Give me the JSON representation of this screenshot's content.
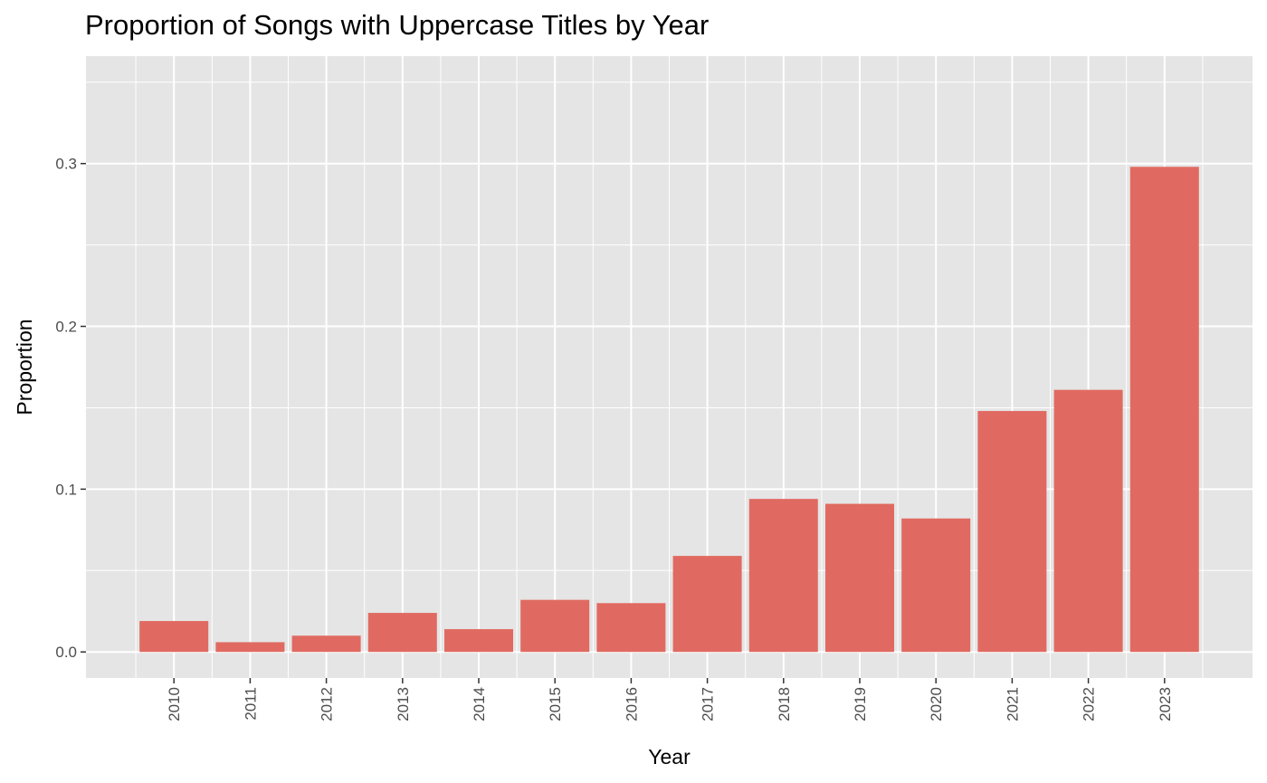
{
  "chart_data": {
    "type": "bar",
    "title": "Proportion of Songs with Uppercase Titles by Year",
    "xlabel": "Year",
    "ylabel": "Proportion",
    "categories": [
      "2010",
      "2011",
      "2012",
      "2013",
      "2014",
      "2015",
      "2016",
      "2017",
      "2018",
      "2019",
      "2020",
      "2021",
      "2022",
      "2023"
    ],
    "values": [
      0.019,
      0.006,
      0.01,
      0.024,
      0.014,
      0.032,
      0.03,
      0.059,
      0.094,
      0.091,
      0.082,
      0.148,
      0.161,
      0.298
    ],
    "ylim": [
      -0.016,
      0.366
    ],
    "y_ticks": [
      "0.0",
      "0.1",
      "0.2",
      "0.3"
    ],
    "bar_color": "#E06A61",
    "panel_color": "#E5E5E5",
    "grid_color": "#FFFFFF",
    "grid": true,
    "legend": "none"
  }
}
